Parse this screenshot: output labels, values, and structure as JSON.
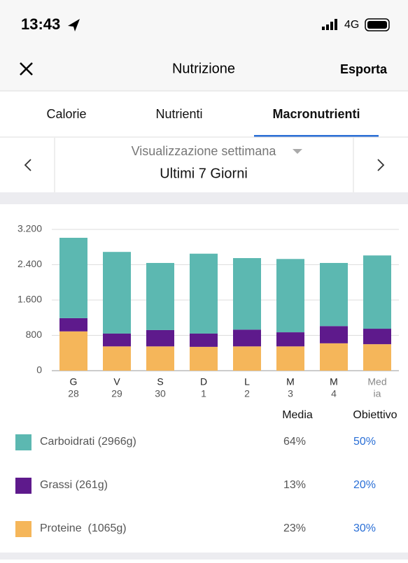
{
  "status": {
    "time": "13:43",
    "network": "4G"
  },
  "header": {
    "title": "Nutrizione",
    "action": "Esporta"
  },
  "tabs": [
    "Calorie",
    "Nutrienti",
    "Macronutrienti"
  ],
  "period": {
    "label": "Visualizzazione settimana",
    "value": "Ultimi 7 Giorni"
  },
  "chart_data": {
    "type": "stacked-bar",
    "categories": [
      "G",
      "V",
      "S",
      "D",
      "L",
      "M",
      "M",
      "Med"
    ],
    "category_sublabels": [
      "28",
      "29",
      "30",
      "1",
      "2",
      "3",
      "4",
      "ia"
    ],
    "series": [
      {
        "name": "Proteine  (1065g)",
        "color": "#f5b65a",
        "values": [
          890,
          550,
          550,
          540,
          550,
          550,
          620,
          600
        ]
      },
      {
        "name": "Grassi (261g)",
        "color": "#5e1a8c",
        "values": [
          300,
          290,
          370,
          300,
          380,
          320,
          390,
          350
        ]
      },
      {
        "name": "Carboidrati (2966g)",
        "color": "#5cb8b1",
        "values": [
          1820,
          1850,
          1520,
          1810,
          1620,
          1660,
          1430,
          1660
        ]
      }
    ],
    "ylim": [
      0,
      3200
    ],
    "yticks": [
      0,
      800,
      {
        "value": 1600,
        "label": "1.600"
      },
      {
        "value": 2400,
        "label": "2.400"
      },
      {
        "value": 3200,
        "label": "3.200"
      }
    ],
    "grid": true
  },
  "macros_table": {
    "headers": [
      "Media",
      "Obiettivo"
    ],
    "rows": [
      {
        "series": 2,
        "media": "64%",
        "obiettivo": "50%"
      },
      {
        "series": 1,
        "media": "13%",
        "obiettivo": "20%"
      },
      {
        "series": 0,
        "media": "23%",
        "obiettivo": "30%"
      }
    ]
  }
}
